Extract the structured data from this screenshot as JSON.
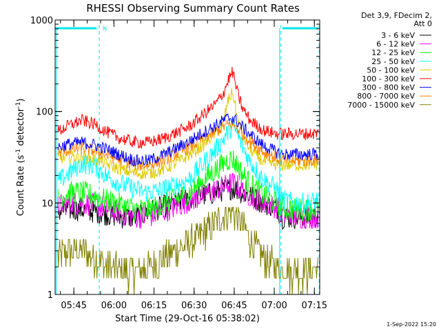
{
  "chart_data": {
    "type": "line",
    "title": "RHESSI Observing Summary Count Rates",
    "xlabel": "Start Time (29-Oct-16 05:38:02)",
    "ylabel_main": "Count Rate (s",
    "ylabel_sup1": "-1",
    "ylabel_mid": " detector",
    "ylabel_sup2": "-1",
    "ylabel_end": ")",
    "yscale": "log",
    "ylim": [
      1,
      1000
    ],
    "xlim": [
      38,
      137
    ],
    "x_unit": "minutes after 05:00",
    "x_ticks": [
      {
        "t": 45,
        "label": "05:45"
      },
      {
        "t": 60,
        "label": "06:00"
      },
      {
        "t": 75,
        "label": "06:15"
      },
      {
        "t": 90,
        "label": "06:30"
      },
      {
        "t": 105,
        "label": "06:45"
      },
      {
        "t": 120,
        "label": "07:00"
      },
      {
        "t": 135,
        "label": "07:15"
      }
    ],
    "y_ticks": [
      {
        "v": 1,
        "label": "1"
      },
      {
        "v": 10,
        "label": "10"
      },
      {
        "v": 100,
        "label": "100"
      },
      {
        "v": 1000,
        "label": "1000"
      }
    ],
    "header_lines": [
      "Det 3,9, FDecim 2,",
      "Att 0"
    ],
    "night_marks": [
      {
        "t": 54.5,
        "label": "N"
      }
    ],
    "saa_bars": [
      [
        38,
        53.5
      ],
      [
        123,
        136.5
      ]
    ],
    "dashed_lines": [
      54.5,
      122.5,
      136.8
    ],
    "solid_lines": [
      38.5,
      122.0
    ],
    "x_sample": [
      38,
      43,
      48,
      53,
      58,
      63,
      68,
      73,
      78,
      83,
      88,
      93,
      98,
      101,
      103,
      104.5,
      106,
      108,
      111,
      116,
      121,
      123,
      128,
      133,
      137
    ],
    "series": [
      {
        "name": "3 - 6 keV",
        "color": "#000000",
        "y": [
          8,
          8.5,
          8.5,
          8,
          7.5,
          7,
          7,
          8,
          9,
          10,
          11,
          12,
          13,
          14,
          14.5,
          14.5,
          14,
          13,
          12,
          10,
          9,
          7,
          7,
          7,
          7
        ]
      },
      {
        "name": "6 - 12 keV",
        "color": "#ff00ff",
        "y": [
          9,
          10,
          10,
          9.5,
          8.5,
          7.5,
          7,
          7,
          8,
          9,
          10.5,
          12,
          14,
          15,
          16,
          16.5,
          15.5,
          14,
          12,
          10,
          9,
          7.5,
          7,
          7,
          7
        ]
      },
      {
        "name": "12 - 25 keV",
        "color": "#00ff00",
        "y": [
          11,
          13,
          13,
          12,
          10.5,
          9.5,
          8.5,
          8.5,
          9.5,
          11,
          13,
          17,
          23,
          27,
          30,
          30,
          26,
          21,
          16,
          12,
          10,
          9,
          8.5,
          8.5,
          9
        ]
      },
      {
        "name": "25 - 50 keV",
        "color": "#00ffff",
        "y": [
          16,
          21,
          27,
          25,
          19,
          16,
          14,
          13,
          14,
          15.5,
          18,
          26,
          38,
          50,
          62,
          70,
          58,
          42,
          28,
          18,
          14,
          11,
          10,
          10,
          11
        ]
      },
      {
        "name": "50 - 100 keV",
        "color": "#ddcc00",
        "y": [
          30,
          32,
          32,
          30,
          26,
          23,
          21,
          21,
          23,
          27,
          33,
          42,
          58,
          80,
          140,
          160,
          90,
          55,
          38,
          28,
          26,
          26,
          26,
          26,
          27
        ]
      },
      {
        "name": "100 - 300 keV",
        "color": "#ff0000",
        "y": [
          58,
          70,
          80,
          72,
          58,
          50,
          46,
          46,
          50,
          58,
          68,
          90,
          120,
          160,
          230,
          270,
          170,
          110,
          80,
          62,
          57,
          57,
          57,
          57,
          58
        ]
      },
      {
        "name": "300 - 800 keV",
        "color": "#0000ff",
        "y": [
          40,
          44,
          46,
          43,
          38,
          33,
          29,
          29,
          33,
          39,
          47,
          58,
          70,
          80,
          85,
          85,
          78,
          68,
          56,
          42,
          36,
          34,
          34,
          34,
          35
        ]
      },
      {
        "name": "800 - 7000 keV",
        "color": "#ff8000",
        "y": [
          34,
          38,
          40,
          37,
          33,
          29,
          26,
          26,
          29,
          34,
          40,
          50,
          60,
          68,
          72,
          72,
          66,
          58,
          47,
          36,
          31,
          29,
          29,
          29,
          30
        ]
      },
      {
        "name": "7000 - 15000 keV",
        "color": "#808000",
        "y": [
          2.5,
          3,
          3,
          2.5,
          2,
          1.8,
          1.8,
          2,
          2.5,
          3,
          3.5,
          4.5,
          6,
          7.5,
          8,
          8,
          7,
          5.5,
          4,
          2.5,
          2,
          1.8,
          1.8,
          1.8,
          2
        ]
      }
    ]
  },
  "footer": {
    "date_stamp": "1-Sep-2022 15:20"
  }
}
